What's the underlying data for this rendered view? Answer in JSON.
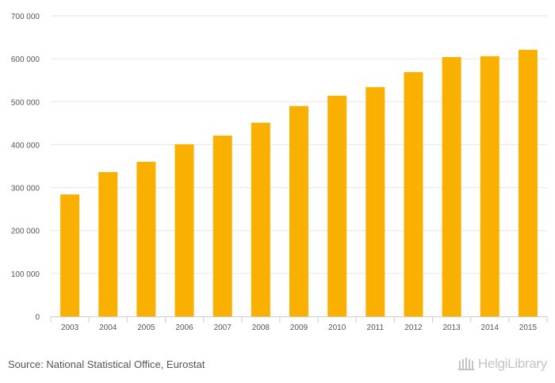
{
  "chart_data": {
    "type": "bar",
    "categories": [
      "2003",
      "2004",
      "2005",
      "2006",
      "2007",
      "2008",
      "2009",
      "2010",
      "2011",
      "2012",
      "2013",
      "2014",
      "2015"
    ],
    "values": [
      284000,
      336000,
      360000,
      401000,
      421000,
      451000,
      490000,
      514000,
      534000,
      569000,
      604000,
      606000,
      621000
    ],
    "title": "",
    "xlabel": "",
    "ylabel": "",
    "ylim": [
      0,
      700000
    ],
    "yticks": [
      0,
      100000,
      200000,
      300000,
      400000,
      500000,
      600000,
      700000
    ],
    "ytick_labels": [
      "0",
      "100 000",
      "200 000",
      "300 000",
      "400 000",
      "500 000",
      "600 000",
      "700 000"
    ],
    "bar_color": "#f9b000",
    "grid": true,
    "legend": "none"
  },
  "footer": {
    "source": "Source: National Statistical Office, Eurostat",
    "logo_text": "HelgiLibrary",
    "logo_icon": "library-building-icon"
  }
}
